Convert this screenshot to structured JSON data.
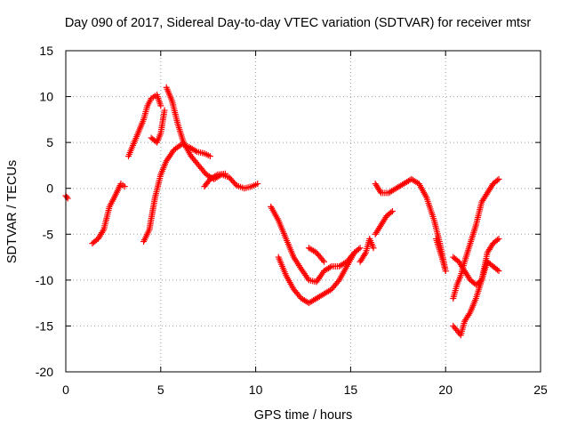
{
  "chart_data": {
    "type": "scatter",
    "title": "Day 090 of 2017, Sidereal Day-to-day VTEC variation (SDTVAR) for receiver mtsr",
    "xlabel": "GPS time / hours",
    "ylabel": "SDTVAR / TECUs",
    "xlim": [
      0,
      25
    ],
    "ylim": [
      -20,
      15
    ],
    "xticks": [
      0,
      5,
      10,
      15,
      20,
      25
    ],
    "yticks": [
      -20,
      -15,
      -10,
      -5,
      0,
      5,
      10,
      15
    ],
    "xtick_labels": [
      "0",
      "5",
      "10",
      "15",
      "20",
      "25"
    ],
    "ytick_labels": [
      "-20",
      "-15",
      "-10",
      "-5",
      "0",
      "5",
      "10",
      "15"
    ],
    "grid": true,
    "marker": "+",
    "color": "#ff0000",
    "series": [
      {
        "name": "s1",
        "x": [
          0.0,
          0.1
        ],
        "y": [
          -0.8,
          -1.1
        ]
      },
      {
        "name": "s2",
        "x": [
          1.4,
          1.7,
          2.0,
          2.3,
          2.6,
          2.9,
          3.1
        ],
        "y": [
          -6.0,
          -5.5,
          -4.5,
          -2.0,
          -0.8,
          0.5,
          0.2
        ]
      },
      {
        "name": "s3",
        "x": [
          3.3,
          3.5,
          3.8,
          4.1,
          4.3,
          4.5,
          4.8,
          5.0
        ],
        "y": [
          3.5,
          4.5,
          6.0,
          7.5,
          9.0,
          9.8,
          10.2,
          9.0
        ]
      },
      {
        "name": "s4",
        "x": [
          4.5,
          4.8,
          5.0,
          5.2
        ],
        "y": [
          5.5,
          5.0,
          6.0,
          8.5
        ]
      },
      {
        "name": "s5",
        "x": [
          5.3,
          5.6,
          5.9,
          6.2,
          6.6,
          7.0,
          7.4,
          7.8,
          8.2,
          8.6,
          9.0,
          9.4,
          9.8,
          10.1
        ],
        "y": [
          11.0,
          9.5,
          7.0,
          5.0,
          3.5,
          2.5,
          1.5,
          1.0,
          1.5,
          1.2,
          0.3,
          0.0,
          0.2,
          0.5
        ]
      },
      {
        "name": "s6",
        "x": [
          4.1,
          4.4,
          4.7,
          5.0,
          5.3,
          5.7,
          6.1,
          6.5,
          6.9,
          7.3,
          7.6
        ],
        "y": [
          -5.8,
          -4.5,
          -1.0,
          1.5,
          3.0,
          4.2,
          4.8,
          4.5,
          4.0,
          3.8,
          3.5
        ]
      },
      {
        "name": "s7",
        "x": [
          7.3,
          7.6,
          8.0,
          8.4
        ],
        "y": [
          0.2,
          1.0,
          1.5,
          1.6
        ]
      },
      {
        "name": "s8",
        "x": [
          10.8,
          11.2,
          11.6,
          12.0,
          12.4,
          12.8,
          13.2,
          13.6,
          14.0,
          14.4,
          14.8,
          15.2
        ],
        "y": [
          -2.0,
          -3.5,
          -5.5,
          -7.5,
          -8.8,
          -10.0,
          -10.2,
          -9.0,
          -8.5,
          -8.5,
          -8.0,
          -7.0
        ]
      },
      {
        "name": "s9",
        "x": [
          11.2,
          11.6,
          12.0,
          12.4,
          12.8,
          13.2,
          13.6,
          14.0,
          14.4,
          14.8,
          15.2,
          15.5
        ],
        "y": [
          -7.5,
          -9.5,
          -11.0,
          -12.0,
          -12.5,
          -12.0,
          -11.5,
          -11.0,
          -10.0,
          -8.5,
          -7.0,
          -6.5
        ]
      },
      {
        "name": "s10",
        "x": [
          12.8,
          13.2,
          13.6
        ],
        "y": [
          -6.5,
          -7.0,
          -8.0
        ]
      },
      {
        "name": "s11",
        "x": [
          15.5,
          15.8,
          16.0,
          16.2
        ],
        "y": [
          -8.0,
          -7.0,
          -5.5,
          -6.5
        ]
      },
      {
        "name": "s12",
        "x": [
          16.3,
          16.6,
          16.9,
          17.2
        ],
        "y": [
          -5.0,
          -4.0,
          -3.0,
          -2.5
        ]
      },
      {
        "name": "s13",
        "x": [
          16.3,
          16.6,
          17.0,
          17.4,
          17.8,
          18.2,
          18.6,
          19.0,
          19.4,
          19.7,
          20.0
        ],
        "y": [
          0.5,
          -0.5,
          -0.5,
          0.0,
          0.5,
          1.0,
          0.5,
          -1.0,
          -3.5,
          -6.0,
          -9.0
        ]
      },
      {
        "name": "s14",
        "x": [
          19.5,
          19.8,
          20.0
        ],
        "y": [
          -5.5,
          -7.5,
          -9.0
        ]
      },
      {
        "name": "s15",
        "x": [
          20.4,
          20.6,
          20.8,
          21.0,
          21.3,
          21.6,
          21.9,
          22.2,
          22.5,
          22.8
        ],
        "y": [
          -12.0,
          -10.5,
          -9.5,
          -8.0,
          -6.0,
          -4.0,
          -1.5,
          -0.5,
          0.5,
          1.0
        ]
      },
      {
        "name": "s16",
        "x": [
          20.4,
          20.7,
          21.0,
          21.3,
          21.6,
          21.9,
          22.2,
          22.5,
          22.8
        ],
        "y": [
          -7.5,
          -8.0,
          -9.0,
          -10.0,
          -10.5,
          -10.0,
          -7.0,
          -6.0,
          -5.5
        ]
      },
      {
        "name": "s17",
        "x": [
          20.4,
          20.6,
          20.8,
          21.0,
          21.3,
          21.6,
          21.9,
          22.2,
          22.5,
          22.8
        ],
        "y": [
          -15.0,
          -15.5,
          -16.0,
          -14.5,
          -13.5,
          -12.0,
          -10.0,
          -8.0,
          -8.5,
          -9.0
        ]
      }
    ]
  }
}
